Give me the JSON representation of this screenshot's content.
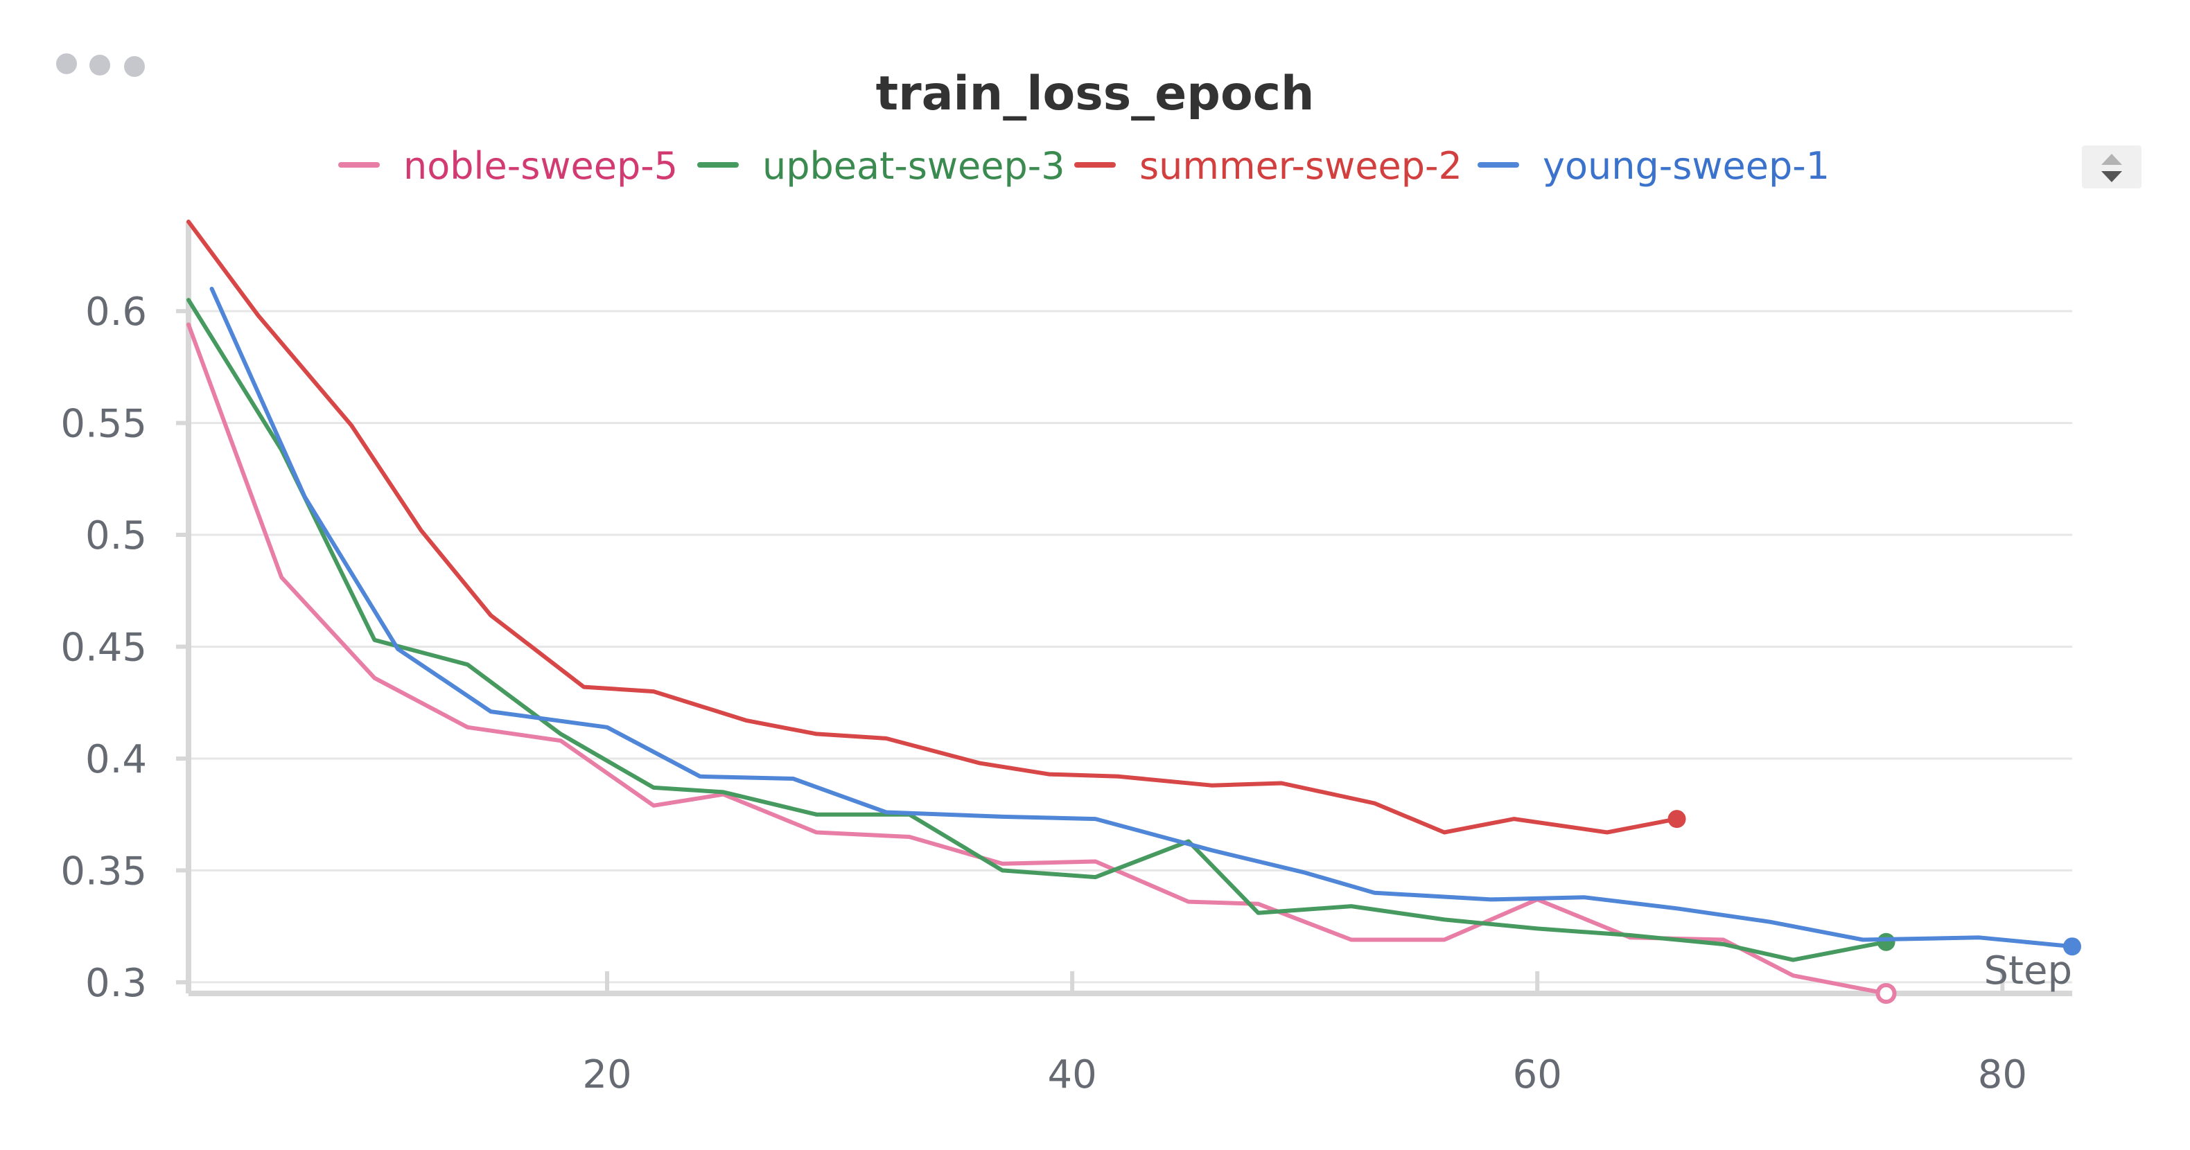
{
  "panel": {
    "menu_icon": "ellipsis-icon",
    "scroll_icon": "up-down-arrows-icon"
  },
  "chart_data": {
    "type": "line",
    "title": "train_loss_epoch",
    "xlabel": "Step",
    "ylabel": "",
    "xlim": [
      2,
      83
    ],
    "ylim": [
      0.295,
      0.64
    ],
    "xticks": [
      20,
      40,
      60,
      80
    ],
    "yticks": [
      0.3,
      0.35,
      0.4,
      0.45,
      0.5,
      0.55,
      0.6
    ],
    "ytick_labels": [
      "0.3",
      "0.35",
      "0.4",
      "0.45",
      "0.5",
      "0.55",
      "0.6"
    ],
    "grid": true,
    "legend": "top",
    "series": [
      {
        "name": "noble-sweep-5",
        "color": "#e87ea6",
        "label_color": "#d23a72",
        "end_marker": "hollow",
        "x": [
          2,
          6,
          10,
          14,
          18,
          22,
          25,
          29,
          33,
          37,
          41,
          45,
          48,
          52,
          56,
          60,
          64,
          68,
          71,
          75
        ],
        "y": [
          0.594,
          0.481,
          0.436,
          0.414,
          0.408,
          0.379,
          0.384,
          0.367,
          0.365,
          0.353,
          0.354,
          0.336,
          0.335,
          0.319,
          0.319,
          0.337,
          0.32,
          0.319,
          0.303,
          0.295
        ]
      },
      {
        "name": "upbeat-sweep-3",
        "color": "#479a5f",
        "label_color": "#3b8a50",
        "end_marker": "filled",
        "x": [
          2,
          6,
          10,
          14,
          18,
          22,
          25,
          29,
          33,
          37,
          41,
          45,
          48,
          52,
          56,
          60,
          64,
          68,
          71,
          75
        ],
        "y": [
          0.605,
          0.538,
          0.453,
          0.442,
          0.411,
          0.387,
          0.385,
          0.375,
          0.375,
          0.35,
          0.347,
          0.363,
          0.331,
          0.334,
          0.328,
          0.324,
          0.321,
          0.317,
          0.31,
          0.318
        ]
      },
      {
        "name": "summer-sweep-2",
        "color": "#d84747",
        "label_color": "#d23f3f",
        "end_marker": "filled",
        "x": [
          2,
          5,
          9,
          12,
          15,
          19,
          22,
          26,
          29,
          32,
          36,
          39,
          42,
          46,
          49,
          53,
          56,
          59,
          63,
          66
        ],
        "y": [
          0.64,
          0.598,
          0.549,
          0.502,
          0.464,
          0.432,
          0.43,
          0.417,
          0.411,
          0.409,
          0.398,
          0.393,
          0.392,
          0.388,
          0.389,
          0.38,
          0.367,
          0.373,
          0.367,
          0.373
        ]
      },
      {
        "name": "young-sweep-1",
        "color": "#4f86d8",
        "label_color": "#3b73cc",
        "end_marker": "filled",
        "x": [
          3,
          7,
          11,
          15,
          20,
          24,
          28,
          32,
          37,
          41,
          46,
          50,
          53,
          58,
          62,
          66,
          70,
          74,
          79,
          83
        ],
        "y": [
          0.61,
          0.517,
          0.449,
          0.421,
          0.414,
          0.392,
          0.391,
          0.376,
          0.374,
          0.373,
          0.359,
          0.349,
          0.34,
          0.337,
          0.338,
          0.333,
          0.327,
          0.319,
          0.32,
          0.316
        ]
      }
    ]
  }
}
